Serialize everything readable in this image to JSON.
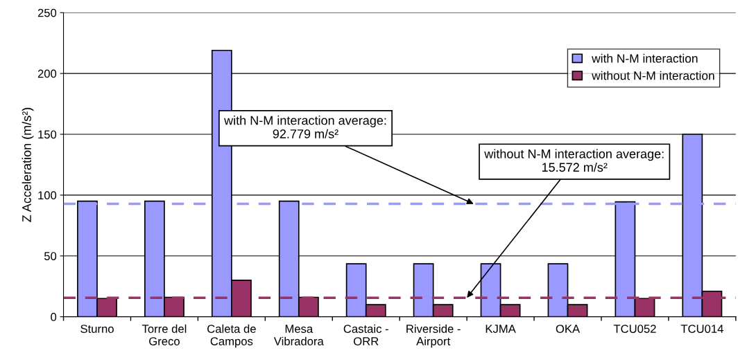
{
  "chart_data": {
    "type": "bar",
    "ylabel": "Z Acceleration (m/s²)",
    "categories": [
      "Sturno",
      "Torre del\nGreco",
      "Caleta de\nCampos",
      "Mesa\nVibradora",
      "Castaic -\nORR",
      "Riverside -\nAirport",
      "KJMA",
      "OKA",
      "TCU052",
      "TCU014"
    ],
    "series": [
      {
        "name": "with N-M interaction",
        "color": "#9999ff",
        "values": [
          95,
          95,
          219,
          95,
          43.5,
          43.5,
          43.5,
          43.5,
          94.5,
          150
        ]
      },
      {
        "name": "without N-M interaction",
        "color": "#993366",
        "values": [
          15,
          16,
          30,
          16,
          10,
          10,
          10,
          10,
          15,
          21
        ]
      }
    ],
    "ylim": [
      0,
      250
    ],
    "yticks": [
      0,
      50,
      100,
      150,
      200,
      250
    ],
    "grid": "y",
    "legend": "top right",
    "ref_lines": [
      {
        "axis": "y",
        "value": 92.779,
        "label": "with N-M interaction average:\n92.779 m/s²",
        "color": "#9999ff",
        "line_style": "dashed"
      },
      {
        "axis": "y",
        "value": 15.572,
        "label": "without N-M interaction average:\n15.572 m/s²",
        "color": "#993366",
        "line_style": "dashed"
      }
    ]
  }
}
